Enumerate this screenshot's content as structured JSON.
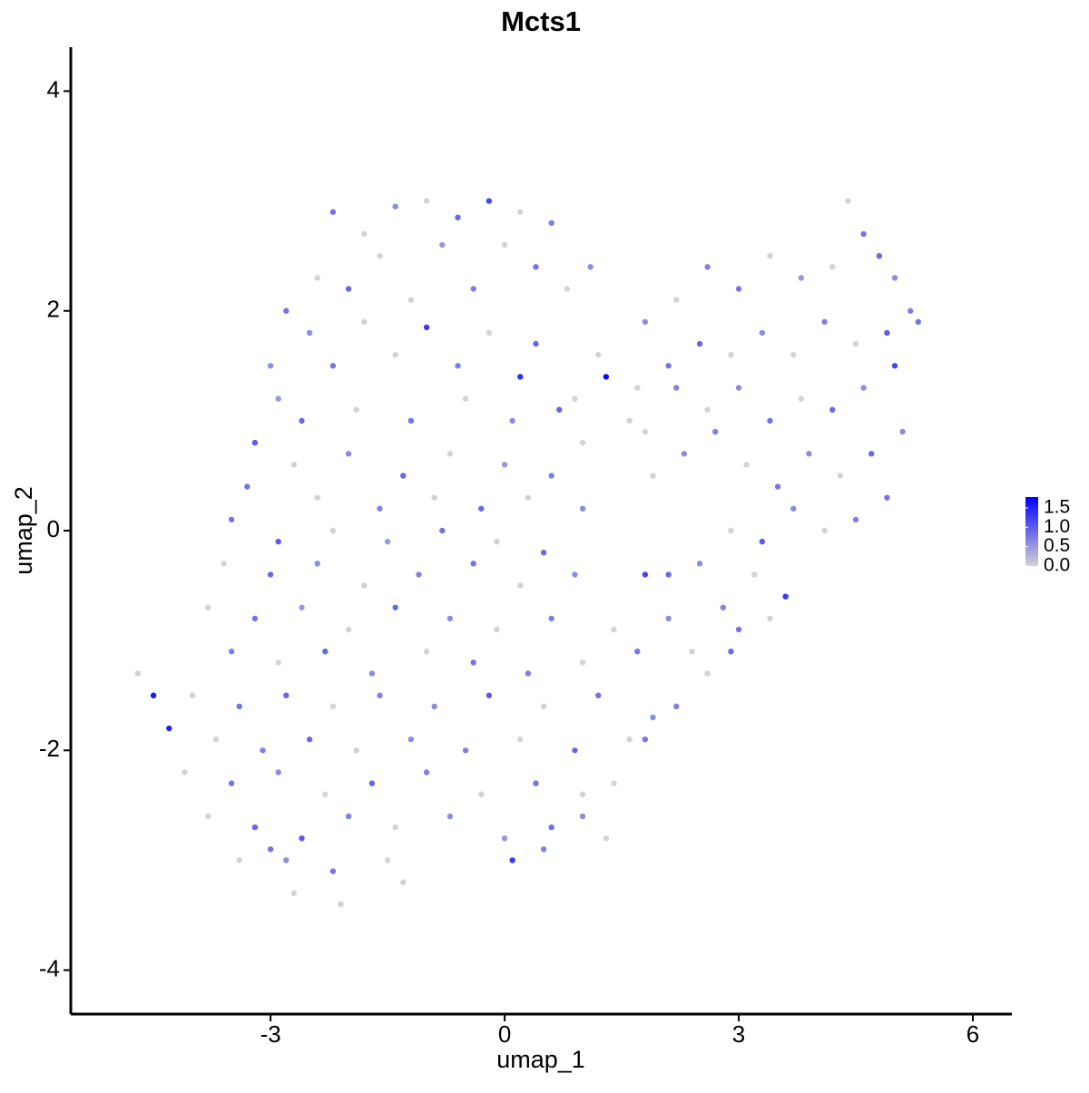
{
  "chart_data": {
    "type": "scatter",
    "title": "Mcts1",
    "xlabel": "umap_1",
    "ylabel": "umap_2",
    "xlim": [
      -5.56,
      6.5
    ],
    "ylim": [
      -4.4,
      4.4
    ],
    "xticks": [
      -3,
      0,
      3,
      6
    ],
    "yticks": [
      -4,
      -2,
      0,
      2,
      4
    ],
    "color_low": "#d3d3d3",
    "color_high": "#0000ff",
    "clim": [
      0,
      1.78
    ],
    "cticks": [
      {
        "value": 0,
        "label": "0.0"
      },
      0.5,
      {
        "value": 1,
        "label": "1.0"
      },
      1.5
    ],
    "x": [
      -2.2,
      -1.8,
      -1.4,
      -1.0,
      -0.6,
      -0.2,
      0.2,
      0.6,
      -1.6,
      -0.8,
      0.0,
      0.4,
      1.1,
      -2.4,
      -2.0,
      -1.2,
      -0.4,
      0.8,
      -2.8,
      -2.5,
      -1.8,
      -1.0,
      -0.2,
      0.4,
      1.2,
      -3.0,
      -2.2,
      -1.4,
      -0.6,
      0.2,
      1.3,
      0.9,
      -2.9,
      -2.6,
      -1.9,
      -1.2,
      -0.5,
      0.1,
      0.7,
      1.6,
      -3.2,
      -2.7,
      -2.0,
      -1.3,
      -0.7,
      0.0,
      0.6,
      1.0,
      -3.3,
      -2.4,
      -1.6,
      -0.9,
      -0.3,
      0.3,
      1.0,
      -3.5,
      -2.9,
      -2.2,
      -1.5,
      -0.8,
      -0.1,
      0.5,
      -3.6,
      -3.0,
      -2.4,
      -1.8,
      -1.1,
      -0.4,
      0.2,
      0.9,
      1.8,
      -3.8,
      -3.2,
      -2.6,
      -2.0,
      -1.4,
      -0.7,
      -0.1,
      0.6,
      1.4,
      2.1,
      -3.5,
      -2.9,
      -2.3,
      -1.7,
      -1.0,
      -0.4,
      0.3,
      1.0,
      1.7,
      2.4,
      -4.7,
      -4.5,
      -4.0,
      -3.4,
      -2.8,
      -2.2,
      -1.6,
      -0.9,
      -0.2,
      0.5,
      1.2,
      1.9,
      -4.3,
      -3.7,
      -3.1,
      -2.5,
      -1.9,
      -1.2,
      -0.5,
      0.2,
      0.9,
      1.6,
      -4.1,
      -3.5,
      -2.9,
      -2.3,
      -1.7,
      -1.0,
      -0.3,
      0.4,
      1.0,
      -3.8,
      -3.2,
      -2.6,
      -2.0,
      -1.4,
      -0.7,
      0.0,
      0.6,
      -3.4,
      -2.8,
      -2.2,
      -1.5,
      0.1,
      -2.7,
      -2.1,
      -1.3,
      0.5,
      -3.0,
      4.4,
      4.6,
      4.8,
      5.0,
      5.2,
      4.2,
      3.8,
      3.4,
      3.0,
      2.6,
      2.2,
      1.8,
      5.3,
      4.9,
      4.5,
      4.1,
      3.7,
      3.3,
      2.9,
      2.5,
      2.1,
      1.7,
      5.0,
      4.6,
      4.2,
      3.8,
      3.4,
      3.0,
      2.6,
      2.2,
      1.8,
      5.1,
      4.7,
      4.3,
      3.9,
      3.5,
      3.1,
      2.7,
      2.3,
      1.9,
      4.9,
      4.5,
      4.1,
      3.7,
      3.3,
      2.9,
      2.5,
      2.1,
      3.2,
      2.8,
      3.6,
      3.4,
      2.9,
      2.6,
      2.2,
      1.8,
      3.0,
      1.4,
      1.0,
      1.3
    ],
    "y": [
      2.9,
      2.7,
      2.95,
      3.0,
      2.85,
      3.0,
      2.9,
      2.8,
      2.5,
      2.6,
      2.6,
      2.4,
      2.4,
      2.3,
      2.2,
      2.1,
      2.2,
      2.2,
      2.0,
      1.8,
      1.9,
      1.85,
      1.8,
      1.7,
      1.6,
      1.5,
      1.5,
      1.6,
      1.5,
      1.4,
      1.4,
      1.2,
      1.2,
      1.0,
      1.1,
      1.0,
      1.2,
      1.0,
      1.1,
      1.0,
      0.8,
      0.6,
      0.7,
      0.5,
      0.7,
      0.6,
      0.5,
      0.8,
      0.4,
      0.3,
      0.2,
      0.3,
      0.2,
      0.3,
      0.2,
      0.1,
      -0.1,
      0.0,
      -0.1,
      0.0,
      -0.1,
      -0.2,
      -0.3,
      -0.4,
      -0.3,
      -0.5,
      -0.4,
      -0.3,
      -0.5,
      -0.4,
      -0.4,
      -0.7,
      -0.8,
      -0.7,
      -0.9,
      -0.7,
      -0.8,
      -0.9,
      -0.8,
      -0.9,
      -0.8,
      -1.1,
      -1.2,
      -1.1,
      -1.3,
      -1.1,
      -1.2,
      -1.3,
      -1.2,
      -1.1,
      -1.1,
      -1.3,
      -1.5,
      -1.5,
      -1.6,
      -1.5,
      -1.6,
      -1.5,
      -1.6,
      -1.5,
      -1.6,
      -1.5,
      -1.7,
      -1.8,
      -1.9,
      -2.0,
      -1.9,
      -2.0,
      -1.9,
      -2.0,
      -1.9,
      -2.0,
      -1.9,
      -2.2,
      -2.3,
      -2.2,
      -2.4,
      -2.3,
      -2.2,
      -2.4,
      -2.3,
      -2.4,
      -2.6,
      -2.7,
      -2.8,
      -2.6,
      -2.7,
      -2.6,
      -2.8,
      -2.7,
      -3.0,
      -3.0,
      -3.1,
      -3.0,
      -3.0,
      -3.3,
      -3.4,
      -3.2,
      -2.9,
      -2.9,
      3.0,
      2.7,
      2.5,
      2.3,
      2.0,
      2.4,
      2.3,
      2.5,
      2.2,
      2.4,
      2.1,
      1.9,
      1.9,
      1.8,
      1.7,
      1.9,
      1.6,
      1.8,
      1.6,
      1.7,
      1.5,
      1.3,
      1.5,
      1.3,
      1.1,
      1.2,
      1.0,
      1.3,
      1.1,
      1.3,
      0.9,
      0.9,
      0.7,
      0.5,
      0.7,
      0.4,
      0.6,
      0.9,
      0.7,
      0.5,
      0.3,
      0.1,
      0.0,
      0.2,
      -0.1,
      0.0,
      -0.3,
      -0.4,
      -0.4,
      -0.7,
      -0.6,
      -0.8,
      -1.1,
      -1.3,
      -1.6,
      -1.9,
      -0.9,
      -2.3,
      -2.6,
      -2.8
    ],
    "values": [
      0.8,
      0,
      0.6,
      0,
      0.9,
      1.2,
      0,
      0.7,
      0,
      0.5,
      0,
      0.8,
      0.6,
      0,
      0.9,
      0,
      0.7,
      0,
      0.8,
      0.6,
      0,
      1.3,
      0,
      0.9,
      0,
      0.6,
      0.8,
      0,
      0.7,
      1.4,
      1.7,
      0,
      0.5,
      0.9,
      0,
      0.8,
      0,
      0.6,
      0.9,
      0,
      1.0,
      0,
      0.6,
      0.9,
      0,
      0.5,
      0.7,
      0,
      0.8,
      0,
      0.7,
      0,
      0.9,
      0,
      0.6,
      0.8,
      1.0,
      0,
      0.5,
      0.8,
      0,
      0.9,
      0,
      0.9,
      0.6,
      0,
      0.7,
      0.8,
      0,
      0.6,
      1.2,
      0,
      0.8,
      0.5,
      0,
      0.9,
      0.6,
      0,
      0.7,
      0,
      0.6,
      0.7,
      0,
      0.9,
      0.6,
      0,
      0.8,
      0.7,
      0,
      0.8,
      0,
      0,
      1.6,
      0,
      0.8,
      0.9,
      0,
      0.7,
      0.6,
      1.0,
      0,
      0.8,
      0.6,
      1.5,
      0,
      0.7,
      0.9,
      0,
      0.6,
      0.7,
      0,
      0.9,
      0,
      0,
      0.8,
      0.6,
      0,
      0.9,
      0.7,
      0,
      0.8,
      0,
      0,
      0.9,
      1.0,
      0.7,
      0,
      0.6,
      0.5,
      0.8,
      0,
      0.6,
      0.8,
      0,
      1.3,
      0,
      0,
      0,
      0.7,
      0.8,
      0,
      0.8,
      0.9,
      0.6,
      0.7,
      0,
      0.5,
      0,
      0.8,
      0.7,
      0,
      0.6,
      0.8,
      1.0,
      0,
      0.7,
      0,
      0.6,
      0,
      0.9,
      0.8,
      0,
      1.2,
      0.6,
      0.9,
      0,
      0.8,
      0.6,
      0,
      0.7,
      0,
      0.6,
      0.9,
      0,
      0.6,
      0.8,
      0,
      0.7,
      0.6,
      0,
      0.8,
      0.7,
      0,
      0.6,
      1.0,
      0,
      0.6,
      0.9,
      0,
      0.7,
      1.3,
      0,
      0.9,
      0,
      0.7,
      0.8,
      0.8,
      0,
      0.6,
      0
    ]
  }
}
